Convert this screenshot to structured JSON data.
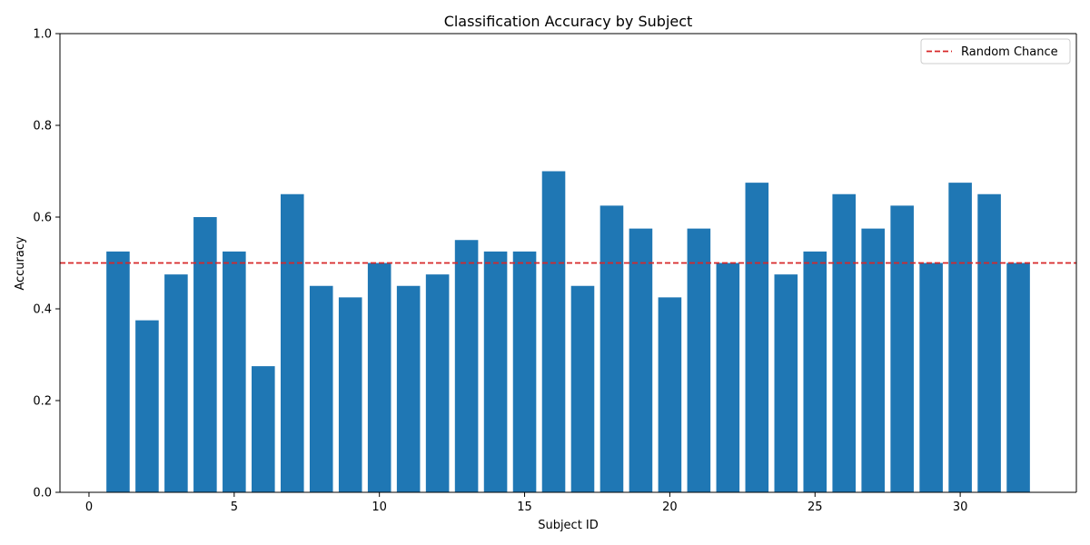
{
  "chart_data": {
    "type": "bar",
    "title": "Classification Accuracy by Subject",
    "xlabel": "Subject ID",
    "ylabel": "Accuracy",
    "xlim": [
      -1,
      34
    ],
    "ylim": [
      0,
      1.0
    ],
    "x_ticks": [
      0,
      5,
      10,
      15,
      20,
      25,
      30
    ],
    "y_ticks": [
      0.0,
      0.2,
      0.4,
      0.6,
      0.8,
      1.0
    ],
    "x_tick_labels": [
      "0",
      "5",
      "10",
      "15",
      "20",
      "25",
      "30"
    ],
    "y_tick_labels": [
      "0.0",
      "0.2",
      "0.4",
      "0.6",
      "0.8",
      "1.0"
    ],
    "grid": false,
    "bar_color": "#1f77b4",
    "categories": [
      1,
      2,
      3,
      4,
      5,
      6,
      7,
      8,
      9,
      10,
      11,
      12,
      13,
      14,
      15,
      16,
      17,
      18,
      19,
      20,
      21,
      22,
      23,
      24,
      25,
      26,
      27,
      28,
      29,
      30,
      31,
      32
    ],
    "values": [
      0.525,
      0.375,
      0.475,
      0.6,
      0.525,
      0.275,
      0.65,
      0.45,
      0.425,
      0.5,
      0.45,
      0.475,
      0.55,
      0.525,
      0.525,
      0.7,
      0.45,
      0.625,
      0.575,
      0.425,
      0.575,
      0.5,
      0.675,
      0.475,
      0.525,
      0.65,
      0.575,
      0.625,
      0.5,
      0.675,
      0.65,
      0.5
    ],
    "reference_line": {
      "y": 0.5,
      "label": "Random Chance",
      "color": "#d62728",
      "style": "dashed"
    },
    "legend": {
      "placement": "top-right",
      "entries": [
        "Random Chance"
      ]
    }
  }
}
